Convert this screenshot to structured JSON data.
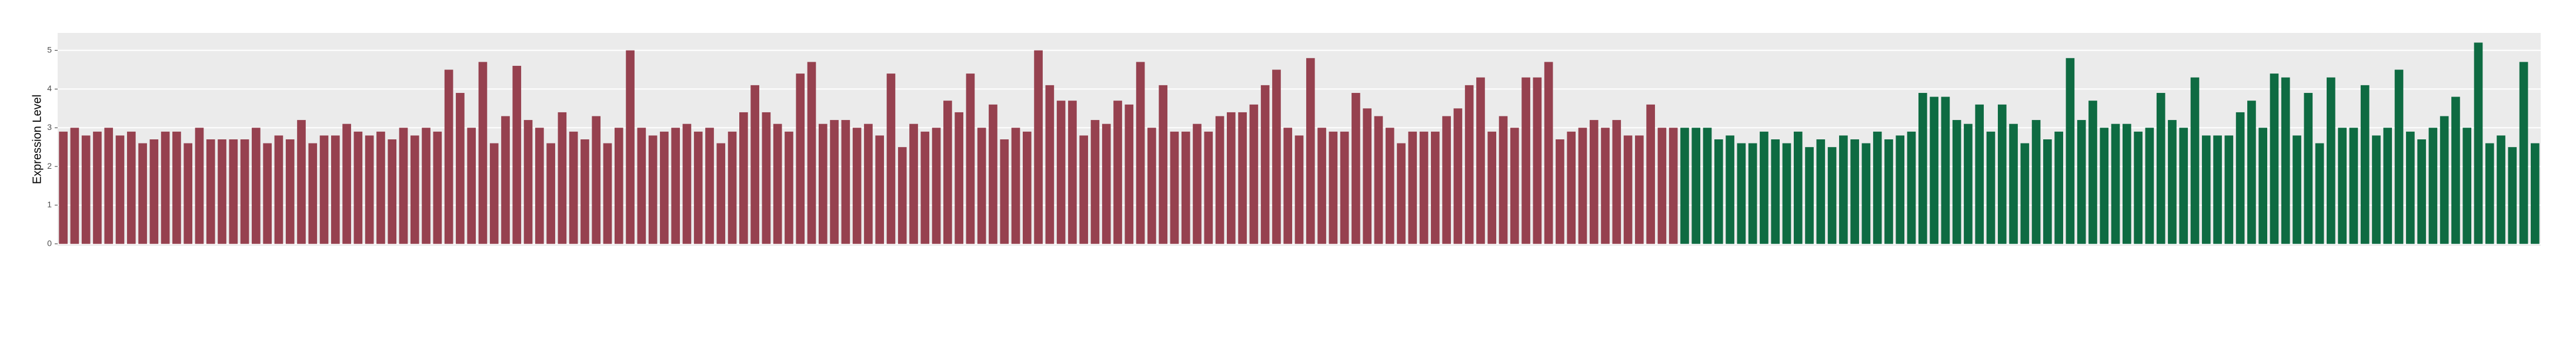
{
  "chart_data": {
    "type": "bar",
    "y_label": "Expression Level",
    "categories": [
      null,
      null,
      null,
      null,
      null,
      null,
      null,
      null,
      null,
      null,
      null,
      null,
      null,
      null,
      null,
      null,
      null,
      null,
      null,
      null,
      null,
      null,
      null,
      null,
      null,
      null,
      null,
      null,
      null,
      null,
      null,
      null,
      null,
      null,
      null,
      null,
      null,
      null,
      null,
      null,
      null,
      null,
      null,
      null,
      null,
      null,
      null,
      null,
      null,
      null,
      null,
      null,
      null,
      null,
      null,
      null,
      null,
      null,
      null,
      null,
      null,
      null,
      null,
      null,
      null,
      null,
      null,
      null,
      null,
      null,
      null,
      null,
      null,
      null,
      null,
      null,
      null,
      null,
      null,
      null,
      null,
      null,
      null,
      null,
      null,
      null,
      null,
      null,
      null,
      null,
      null,
      null,
      null,
      null,
      null,
      null,
      null,
      null,
      null,
      null,
      null,
      null,
      null,
      null,
      null,
      null,
      null,
      null,
      null,
      null,
      null,
      null,
      null,
      null,
      null,
      null,
      null,
      null,
      null,
      null,
      null,
      null,
      null,
      null,
      null,
      null,
      null,
      null,
      null,
      null,
      null,
      null,
      null,
      null,
      null,
      null,
      null,
      null,
      null,
      null,
      null,
      null,
      null,
      null,
      null,
      null,
      null,
      null,
      null,
      null,
      null,
      null,
      null,
      null,
      null,
      null,
      null,
      null,
      null,
      null,
      null,
      null,
      null,
      null,
      null,
      null,
      null,
      null,
      null,
      null,
      null,
      null,
      null,
      null,
      null,
      null,
      null,
      null,
      null,
      null,
      null,
      null,
      null,
      null,
      null,
      null,
      null,
      null,
      null,
      null,
      null,
      null,
      null,
      null,
      null,
      null,
      null,
      null,
      null,
      null,
      null,
      null,
      null,
      null,
      null,
      null,
      null,
      null,
      null,
      null,
      null,
      null,
      null,
      null,
      null,
      null,
      null,
      null,
      null
    ],
    "series": [
      {
        "color": "#96414f",
        "values": [
          2.9,
          3.0,
          2.8,
          2.9,
          3.0,
          2.8,
          2.9,
          2.6,
          2.7,
          2.9,
          2.9,
          2.6,
          3.0,
          2.7,
          2.7,
          2.7,
          2.7,
          3.0,
          2.6,
          2.8,
          2.7,
          3.2,
          2.6,
          2.8,
          2.8,
          3.1,
          2.9,
          2.8,
          2.9,
          2.7,
          3.0,
          2.8,
          3.0,
          2.9,
          4.5,
          3.9,
          3.0,
          4.7,
          2.6,
          3.3,
          4.6,
          3.2,
          3.0,
          2.6,
          3.4,
          2.9,
          2.7,
          3.3,
          2.6,
          3.0,
          5.0,
          3.0,
          2.8,
          2.9,
          3.0,
          3.1,
          2.9,
          3.0,
          2.6,
          2.9,
          3.4,
          4.1,
          3.4,
          3.1,
          2.9,
          4.4,
          4.7,
          3.1,
          3.2,
          3.2,
          3.0,
          3.1,
          2.8,
          4.4,
          2.5,
          3.1,
          2.9,
          3.0,
          3.7,
          3.4,
          4.4,
          3.0,
          3.6,
          2.7,
          3.0,
          2.9,
          5.0,
          4.1,
          3.7,
          3.7,
          2.8,
          3.2,
          3.1,
          3.7,
          3.6,
          4.7,
          3.0,
          4.1,
          2.9,
          2.9,
          3.1,
          2.9,
          3.3,
          3.4,
          3.4,
          3.6,
          4.1,
          4.5,
          3.0,
          2.8,
          4.8,
          3.0,
          2.9,
          2.9,
          3.9,
          3.5,
          3.3,
          3.0,
          2.6,
          2.9,
          2.9,
          2.9,
          3.3,
          3.5,
          4.1,
          4.3,
          2.9,
          3.3,
          3.0,
          4.3,
          4.3,
          4.7,
          2.7,
          2.9,
          3.0,
          3.2,
          3.0,
          3.2,
          2.8,
          2.8,
          3.6,
          3.0,
          3.0,
          null,
          null,
          null,
          null,
          null,
          null,
          null,
          null,
          null,
          null,
          null,
          null,
          null,
          null,
          null,
          null,
          null,
          null,
          null,
          null,
          null,
          null,
          null,
          null,
          null,
          null,
          null,
          null,
          null,
          null,
          null,
          null,
          null,
          null,
          null,
          null,
          null,
          null,
          null,
          null,
          null,
          null,
          null,
          null,
          null,
          null,
          null,
          null,
          null,
          null,
          null,
          null,
          null,
          null,
          null,
          null,
          null,
          null,
          null,
          null,
          null,
          null,
          null,
          null,
          null,
          null,
          null,
          null,
          null,
          null,
          null,
          null,
          null,
          null,
          null,
          null
        ]
      },
      {
        "color": "#0e6b42",
        "values": [
          null,
          null,
          null,
          null,
          null,
          null,
          null,
          null,
          null,
          null,
          null,
          null,
          null,
          null,
          null,
          null,
          null,
          null,
          null,
          null,
          null,
          null,
          null,
          null,
          null,
          null,
          null,
          null,
          null,
          null,
          null,
          null,
          null,
          null,
          null,
          null,
          null,
          null,
          null,
          null,
          null,
          null,
          null,
          null,
          null,
          null,
          null,
          null,
          null,
          null,
          null,
          null,
          null,
          null,
          null,
          null,
          null,
          null,
          null,
          null,
          null,
          null,
          null,
          null,
          null,
          null,
          null,
          null,
          null,
          null,
          null,
          null,
          null,
          null,
          null,
          null,
          null,
          null,
          null,
          null,
          null,
          null,
          null,
          null,
          null,
          null,
          null,
          null,
          null,
          null,
          null,
          null,
          null,
          null,
          null,
          null,
          null,
          null,
          null,
          null,
          null,
          null,
          null,
          null,
          null,
          null,
          null,
          null,
          null,
          null,
          null,
          null,
          null,
          null,
          null,
          null,
          null,
          null,
          null,
          null,
          null,
          null,
          null,
          null,
          null,
          null,
          null,
          null,
          null,
          null,
          null,
          null,
          null,
          null,
          null,
          null,
          null,
          null,
          null,
          null,
          null,
          null,
          null,
          3.0,
          3.0,
          3.0,
          2.7,
          2.8,
          2.6,
          2.6,
          2.9,
          2.7,
          2.6,
          2.9,
          2.5,
          2.7,
          2.5,
          2.8,
          2.7,
          2.6,
          2.9,
          2.7,
          2.8,
          2.9,
          3.9,
          3.8,
          3.8,
          3.2,
          3.1,
          3.6,
          2.9,
          3.6,
          3.1,
          2.6,
          3.2,
          2.7,
          2.9,
          4.8,
          3.2,
          3.7,
          3.0,
          3.1,
          3.1,
          2.9,
          3.0,
          3.9,
          3.2,
          3.0,
          4.3,
          2.8,
          2.8,
          2.8,
          3.4,
          3.7,
          3.0,
          4.4,
          4.3,
          2.8,
          3.9,
          2.6,
          4.3,
          3.0,
          3.0,
          4.1,
          2.8,
          3.0,
          4.5,
          2.9,
          2.7,
          3.0,
          3.3,
          3.8,
          3.0,
          5.2,
          2.6,
          2.8,
          2.5,
          4.7,
          2.6
        ]
      }
    ],
    "ylim": [
      -0.05,
      5.45
    ],
    "yticks": [
      0,
      1,
      2,
      3,
      4,
      5
    ],
    "grid": true
  }
}
